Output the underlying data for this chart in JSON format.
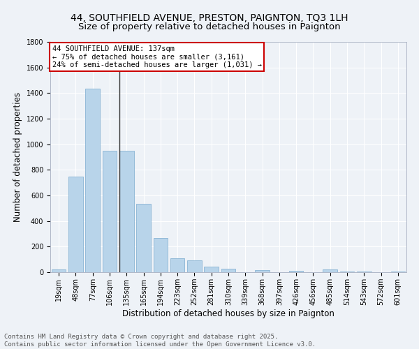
{
  "title": "44, SOUTHFIELD AVENUE, PRESTON, PAIGNTON, TQ3 1LH",
  "subtitle": "Size of property relative to detached houses in Paignton",
  "xlabel": "Distribution of detached houses by size in Paignton",
  "ylabel": "Number of detached properties",
  "categories": [
    "19sqm",
    "48sqm",
    "77sqm",
    "106sqm",
    "135sqm",
    "165sqm",
    "194sqm",
    "223sqm",
    "252sqm",
    "281sqm",
    "310sqm",
    "339sqm",
    "368sqm",
    "397sqm",
    "426sqm",
    "456sqm",
    "485sqm",
    "514sqm",
    "543sqm",
    "572sqm",
    "601sqm"
  ],
  "values": [
    22,
    748,
    1435,
    948,
    950,
    535,
    270,
    110,
    93,
    43,
    28,
    0,
    15,
    0,
    12,
    0,
    20,
    5,
    5,
    0,
    5
  ],
  "bar_color": "#b8d4ea",
  "bar_edge_color": "#8ab4d4",
  "vline_x_index": 4,
  "vline_color": "#333333",
  "annotation_text": "44 SOUTHFIELD AVENUE: 137sqm\n← 75% of detached houses are smaller (3,161)\n24% of semi-detached houses are larger (1,031) →",
  "annotation_box_color": "#ffffff",
  "annotation_box_edge_color": "#cc0000",
  "ylim": [
    0,
    1800
  ],
  "yticks": [
    0,
    200,
    400,
    600,
    800,
    1000,
    1200,
    1400,
    1600,
    1800
  ],
  "background_color": "#eef2f7",
  "grid_color": "#ffffff",
  "footer": "Contains HM Land Registry data © Crown copyright and database right 2025.\nContains public sector information licensed under the Open Government Licence v3.0.",
  "title_fontsize": 10,
  "axis_label_fontsize": 8.5,
  "tick_fontsize": 7,
  "footer_fontsize": 6.5,
  "annotation_fontsize": 7.5
}
